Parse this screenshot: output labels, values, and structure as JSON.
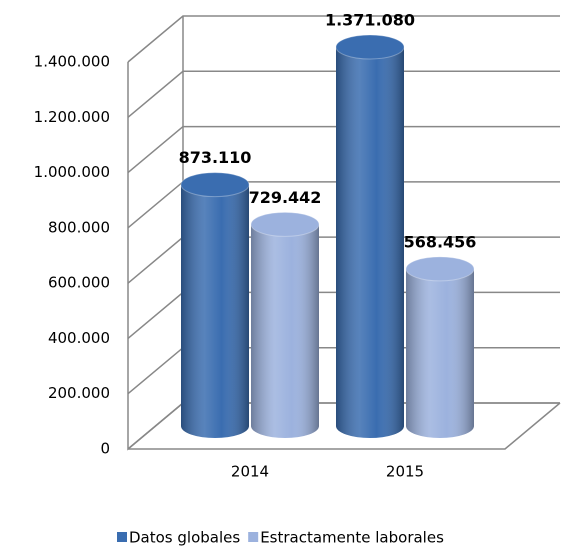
{
  "chart_data": {
    "type": "bar",
    "categories": [
      "2014",
      "2015"
    ],
    "series": [
      {
        "name": "Datos globales",
        "color": "#3a6db0",
        "values": [
          873110,
          1371080
        ],
        "value_labels": [
          "873.110",
          "1.371.080"
        ]
      },
      {
        "name": "Estractamente laborales",
        "color": "#9cb2de",
        "values": [
          729442,
          568456
        ],
        "value_labels": [
          "729.442",
          "568.456"
        ]
      }
    ],
    "ylim": [
      0,
      1400000
    ],
    "yticks": [
      0,
      {
        "value": 200000,
        "label": "200.000"
      },
      {
        "value": 400000,
        "label": "400.000"
      },
      {
        "value": 600000,
        "label": "600.000"
      },
      {
        "value": 800000,
        "label": "800.000"
      },
      {
        "value": 1000000,
        "label": "1.000.000"
      },
      {
        "value": 1200000,
        "label": "1.200.000"
      },
      {
        "value": 1400000,
        "label": "1.400.000"
      }
    ],
    "grid": true,
    "legend": "bottom"
  }
}
